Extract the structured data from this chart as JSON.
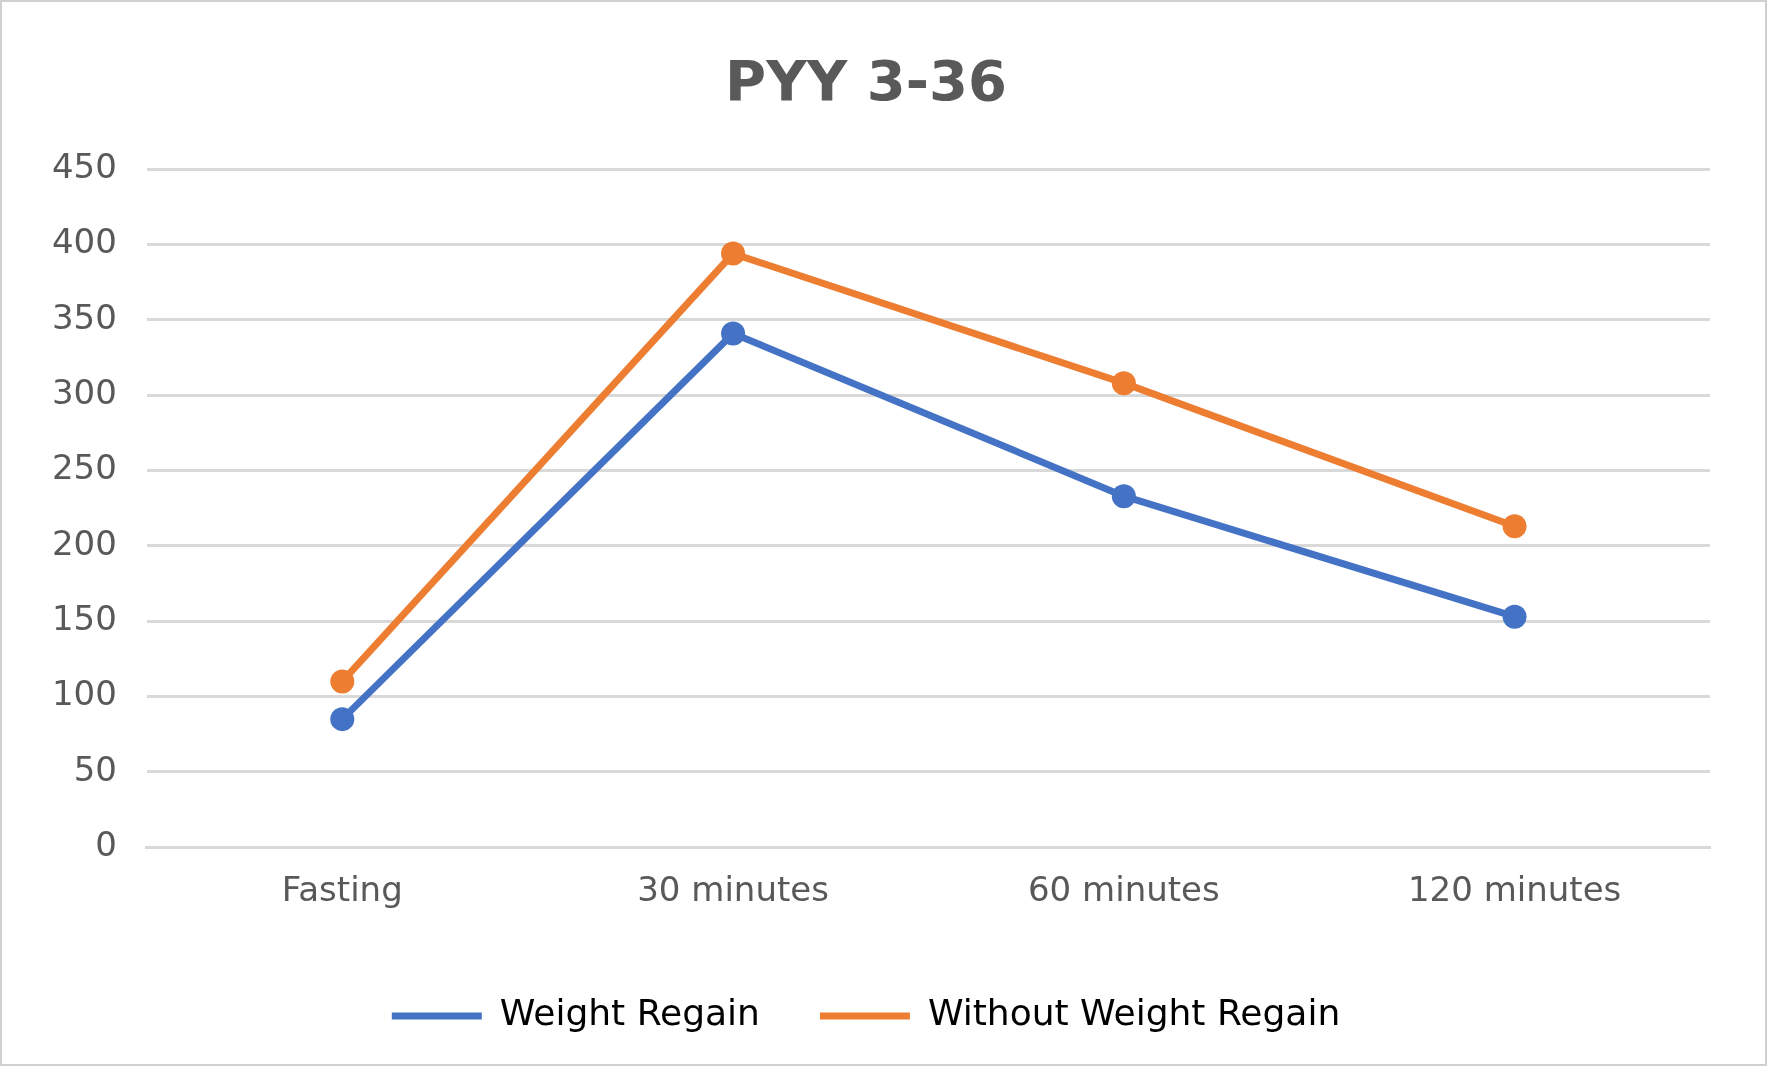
{
  "chart_data": {
    "type": "line",
    "title": "PYY 3-36",
    "categories": [
      "Fasting",
      "30 minutes",
      "60 minutes",
      "120 minutes"
    ],
    "series": [
      {
        "name": "Weight Regain",
        "color": "#4472c4",
        "values": [
          85,
          341,
          233,
          153
        ]
      },
      {
        "name": "Without Weight Regain",
        "color": "#ed7d31",
        "values": [
          110,
          394,
          308,
          213
        ]
      }
    ],
    "ylim": [
      0,
      450
    ],
    "yticks": [
      0,
      50,
      100,
      150,
      200,
      250,
      300,
      350,
      400,
      450
    ],
    "grid": "y",
    "legend": "bottom",
    "marker": "circle",
    "line_style": "solid"
  }
}
